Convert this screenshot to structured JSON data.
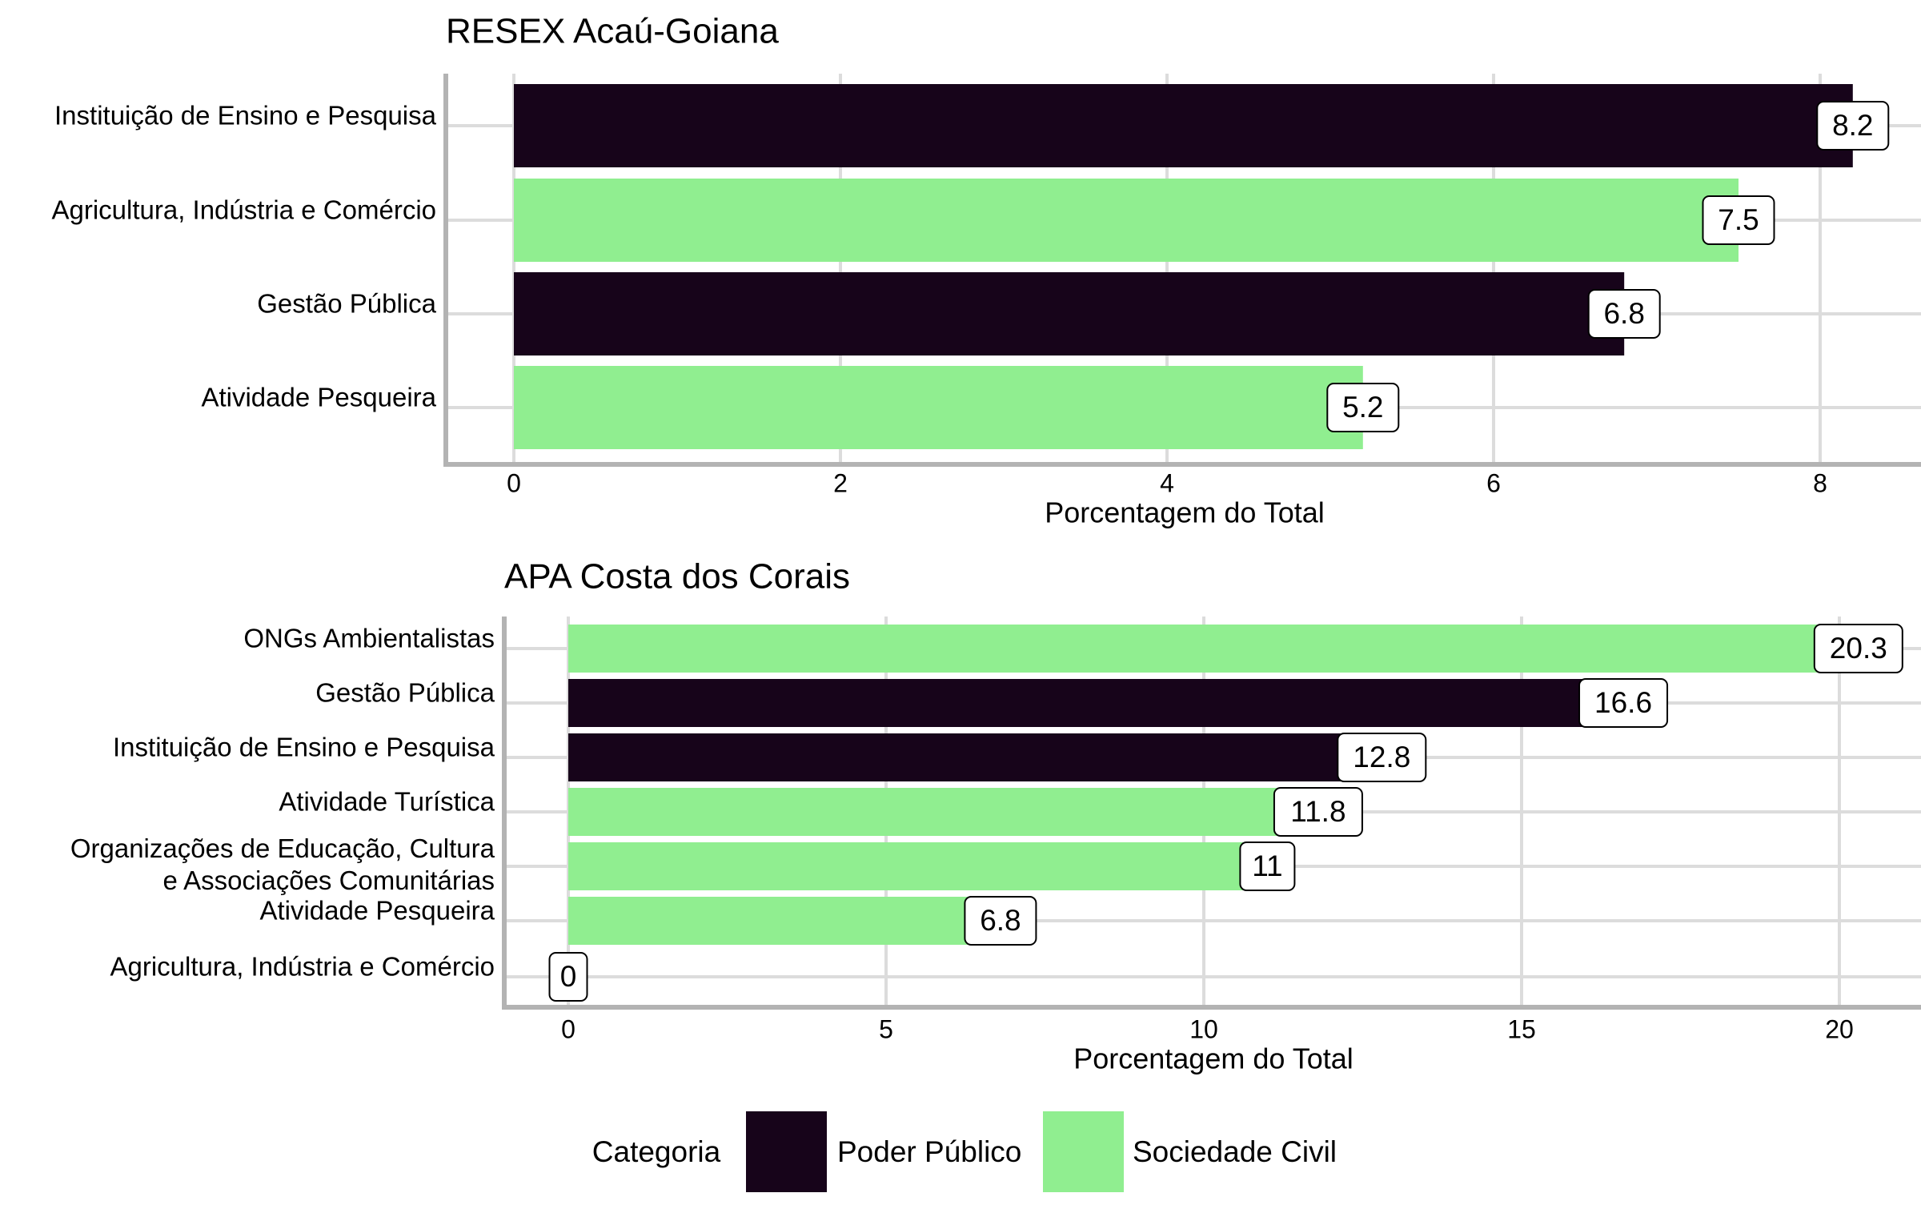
{
  "colors": {
    "poder_publico": "#17041a",
    "sociedade_civil": "#90ee90",
    "grid": "#dcdcdc",
    "axis": "#b3b3b3"
  },
  "chart_data": [
    {
      "type": "bar",
      "orientation": "horizontal",
      "title": "RESEX Acaú-Goiana",
      "xlabel": "Porcentagem do Total",
      "ylabel": "",
      "xlim": [
        0,
        8.6
      ],
      "xticks": [
        0,
        2,
        4,
        6,
        8
      ],
      "grid": true,
      "bars": [
        {
          "label": "Instituição de Ensino e Pesquisa",
          "value": 8.2,
          "category": "Poder Público",
          "data_label": "8.2"
        },
        {
          "label": "Agricultura, Indústria e Comércio",
          "value": 7.5,
          "category": "Sociedade Civil",
          "data_label": "7.5"
        },
        {
          "label": "Gestão Pública",
          "value": 6.8,
          "category": "Poder Público",
          "data_label": "6.8"
        },
        {
          "label": "Atividade Pesqueira",
          "value": 5.2,
          "category": "Sociedade Civil",
          "data_label": "5.2"
        }
      ]
    },
    {
      "type": "bar",
      "orientation": "horizontal",
      "title": "APA Costa dos Corais",
      "xlabel": "Porcentagem do Total",
      "ylabel": "",
      "xlim": [
        0,
        21.2
      ],
      "xticks": [
        0,
        5,
        10,
        15,
        20
      ],
      "grid": true,
      "bars": [
        {
          "label": "ONGs Ambientalistas",
          "value": 20.3,
          "category": "Sociedade Civil",
          "data_label": "20.3"
        },
        {
          "label": "Gestão Pública",
          "value": 16.6,
          "category": "Poder Público",
          "data_label": "16.6"
        },
        {
          "label": "Instituição de Ensino e Pesquisa",
          "value": 12.8,
          "category": "Poder Público",
          "data_label": "12.8"
        },
        {
          "label": "Atividade Turística",
          "value": 11.8,
          "category": "Sociedade Civil",
          "data_label": "11.8"
        },
        {
          "label": "Organizações de Educação, Cultura\ne Associações Comunitárias",
          "value": 11,
          "category": "Sociedade Civil",
          "data_label": "11"
        },
        {
          "label": "Atividade Pesqueira",
          "value": 6.8,
          "category": "Sociedade Civil",
          "data_label": "6.8"
        },
        {
          "label": "Agricultura, Indústria e Comércio",
          "value": 0,
          "category": "Sociedade Civil",
          "data_label": "0"
        }
      ]
    }
  ],
  "legend": {
    "title": "Categoria",
    "position": "bottom",
    "items": [
      {
        "label": "Poder Público",
        "category": "Poder Público"
      },
      {
        "label": "Sociedade Civil",
        "category": "Sociedade Civil"
      }
    ]
  }
}
